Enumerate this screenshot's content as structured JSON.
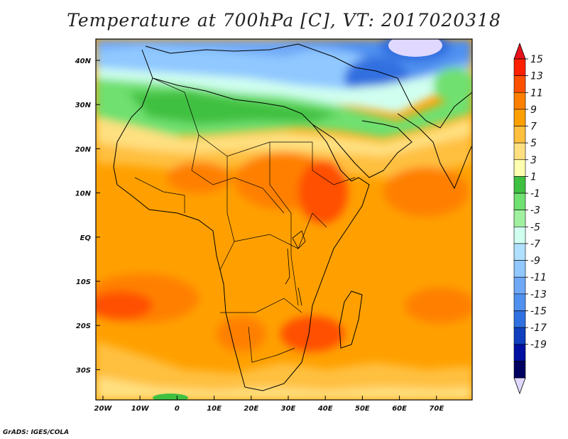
{
  "title": "Temperature at 700hPa [C], VT: 2017020318",
  "credit": "GrADS: IGES/COLA",
  "map": {
    "lat_ticks": [
      "40N",
      "30N",
      "20N",
      "10N",
      "EQ",
      "10S",
      "20S",
      "30S"
    ],
    "lon_ticks": [
      "20W",
      "10W",
      "0",
      "10E",
      "20E",
      "30E",
      "40E",
      "50E",
      "60E",
      "70E"
    ]
  },
  "colorbar": {
    "labels": [
      "15",
      "13",
      "11",
      "9",
      "7",
      "5",
      "3",
      "1",
      "-1",
      "-3",
      "-5",
      "-7",
      "-9",
      "-11",
      "-13",
      "-15",
      "-17",
      "-19"
    ],
    "colors": [
      "#ff2000",
      "#ff5000",
      "#ff8000",
      "#ffa000",
      "#ffc040",
      "#ffe080",
      "#ffffb0",
      "#40c040",
      "#70e070",
      "#a0f0a0",
      "#d0fff0",
      "#b0e0ff",
      "#90c8ff",
      "#70a8f8",
      "#5090f0",
      "#3070e0",
      "#1040c0",
      "#0010a0",
      "#000060"
    ],
    "over_color": "#e8101a",
    "under_color": "#e0d8ff"
  }
}
